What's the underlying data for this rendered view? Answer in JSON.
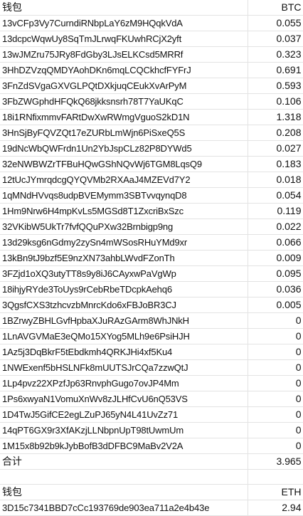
{
  "btc": {
    "header": {
      "wallet_label": "钱包",
      "currency_label": "BTC"
    },
    "rows": [
      {
        "address": "13vCFp3Vy7CurndiRNbpLaY6zM9HQqkVdA",
        "value": "0.055"
      },
      {
        "address": "13dcpcWqwUy8SqTmJLrwqFKUwhRCjX2yft",
        "value": "0.037"
      },
      {
        "address": "13wJMZru75JRy8FdGby3LJsELKCsd5MRRf",
        "value": "0.323"
      },
      {
        "address": "3HhDZVzqQMDYAohDKn6mqLCQCkhcfFYFrJ",
        "value": "0.691"
      },
      {
        "address": "3FnZdSVgaGXVGLPQtDXkjuqCEukXvArPyM",
        "value": "0.593"
      },
      {
        "address": "3FbZWGphdHFQkQ68jkksnsrh78T7YaUKqC",
        "value": "0.106"
      },
      {
        "address": "18i1RNfixmmvFARtDwXwRWmgVguoS2kD1N",
        "value": "1.318"
      },
      {
        "address": "3HnSjByFQVZQt17eZURbLmWjn6PiSxeQ5S",
        "value": "0.208"
      },
      {
        "address": "19dNcWbQWFrdn1Un2YbJspCLz82P8DYWd5",
        "value": "0.027"
      },
      {
        "address": "32eNWBWZrTFBuHQwGShNQvWj6TGM8LqsQ9",
        "value": "0.183"
      },
      {
        "address": "12tUcJYmrqdcgQYQVMb2RXAaJ4MZEVd7Y2",
        "value": "0.018"
      },
      {
        "address": "1qMNdHVvqs8udpBVEMymm3SBTvvqynqD8",
        "value": "0.054"
      },
      {
        "address": "1Hm9Nrw6H4mpKvLs5MGSd8T1ZxcriBxSzc",
        "value": "0.119"
      },
      {
        "address": "32VKibW5UkTr7fvfQQuPXw32Brnbigp9ng",
        "value": "0.022"
      },
      {
        "address": "13d29ksg6nGdmy2zySn4mWSosRHuYMd9xr",
        "value": "0.066"
      },
      {
        "address": "13kBn9tJ9bzf5E9nzXN73ahbLWvdFZonTh",
        "value": "0.009"
      },
      {
        "address": "3FZjd1oXQ3utyTT8s9y8iJ6CAyxwPaVgWp",
        "value": "0.095"
      },
      {
        "address": "18ihjyRYde3ToUys9rCebRbeTDcpkAehq6",
        "value": "0.036"
      },
      {
        "address": "3QgsfCXS3tzhcvzbMnrcKdo6xFBJoBR3CJ",
        "value": "0.005"
      },
      {
        "address": "1BZrwyZBHLGvfHpbaXJuRAzGArm8WhJNkH",
        "value": "0"
      },
      {
        "address": "1LnAVGVMaE3eQMo15XYog5MLh9e6PsiHJH",
        "value": "0"
      },
      {
        "address": "1Az5j3DqBkrF5tEbdkmh4QRKJHi4xf5Ku4",
        "value": "0"
      },
      {
        "address": "1NWExenf5bHSLNFk8mUUTSJrCQa7zzwQtJ",
        "value": "0"
      },
      {
        "address": "1Lp4pvz22XPzfJp63RnvphGugo7ovJP4Mm",
        "value": "0"
      },
      {
        "address": "1Ps6xwyaN1VomuXnWv8zJLHfCvU6nQ53VS",
        "value": "0"
      },
      {
        "address": "1D4TwJ5GifCE2egLZuPJ65yN4L41UvZz71",
        "value": "0"
      },
      {
        "address": "14qPT6GX9r3XfAKzjLLNbpnUpT98tUwmUm",
        "value": "0"
      },
      {
        "address": "1M15x8b92b9kJybBofB3dDFBC9MaBv2V2A",
        "value": "0"
      }
    ],
    "total": {
      "label": "合计",
      "value": "3.965"
    }
  },
  "eth": {
    "header": {
      "wallet_label": "钱包",
      "currency_label": "ETH"
    },
    "rows": [
      {
        "address": "3D15c7341BBD7cCc193769de903ea711a2e4b43e",
        "value": "2.94"
      }
    ]
  }
}
